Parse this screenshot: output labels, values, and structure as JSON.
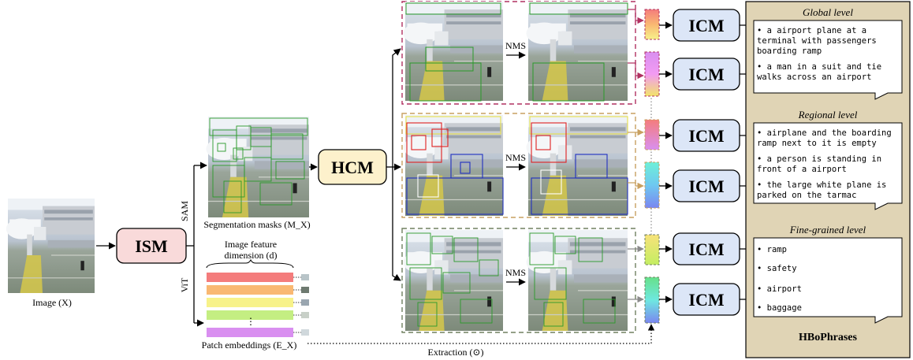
{
  "inputs": {
    "image_caption": "Image (X)",
    "sam_label": "SAM",
    "vit_label": "ViT",
    "seg_caption": "Segmentation masks (M_X)",
    "feat_caption_line1": "Image feature",
    "feat_caption_line2": "dimension (d)",
    "patch_caption": "Patch embeddings (E_X)",
    "extraction_caption": "Extraction (⊙)",
    "nms": [
      "NMS",
      "NMS",
      "NMS"
    ]
  },
  "modules": {
    "ism": "ISM",
    "hcm": "HCM",
    "icm": [
      "ICM",
      "ICM",
      "ICM",
      "ICM",
      "ICM",
      "ICM"
    ]
  },
  "hbophrases": {
    "title": "HBoPhrases",
    "global_title": "Global level",
    "regional_title": "Regional level",
    "fine_title": "Fine-grained level",
    "global_items": [
      [
        "• a airport plane at a",
        "terminal with passengers",
        "boarding ramp"
      ],
      [
        "• a man in a suit and tie",
        "walks across an airport"
      ]
    ],
    "regional_items": [
      [
        "• airplane and the boarding",
        "ramp next to it is empty"
      ],
      [
        "• a person is standing in",
        "front of a airport"
      ],
      [
        "• the large white plane is",
        "parked on the tarmac"
      ]
    ],
    "fine_items": [
      "• ramp",
      "• safety",
      "• airport",
      "• baggage"
    ]
  },
  "colors": {
    "module_ism": "#f9dada",
    "module_hcm": "#fdf1cc",
    "module_icm": "#dce6f7",
    "hbophrases_panel": "#e0d4b5",
    "global_dash": "#b03060",
    "regional_dash": "#c8a060",
    "fine_dash": "#708060",
    "embed_bars": [
      "#f47c7c",
      "#f9b872",
      "#f7f28a",
      "#c4ee82",
      "#d98ff0"
    ]
  }
}
